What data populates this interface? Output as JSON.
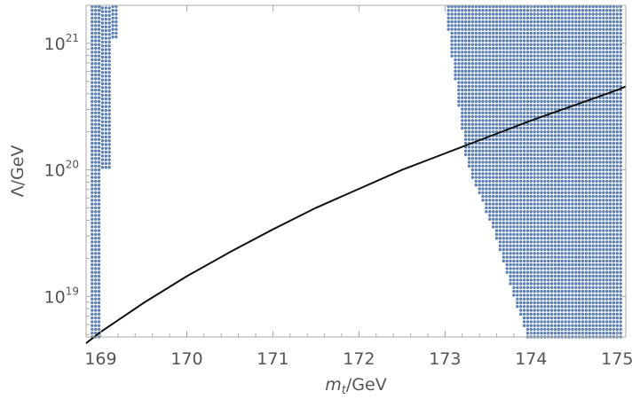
{
  "chart_data": {
    "type": "scatter",
    "xlabel": {
      "symbol": "m",
      "subscript": "t",
      "unit": "/GeV"
    },
    "ylabel": "Λ/GeV",
    "xlim": [
      168.83,
      175.1
    ],
    "ylim_log10": [
      18.68,
      21.3
    ],
    "y_scale": "log",
    "grid": false,
    "x_ticks": [
      169,
      170,
      171,
      172,
      173,
      174,
      175
    ],
    "y_ticks": [
      {
        "base": "10",
        "exp": "19",
        "log10": 19
      },
      {
        "base": "10",
        "exp": "20",
        "log10": 20
      },
      {
        "base": "10",
        "exp": "21",
        "log10": 21
      }
    ],
    "colors": {
      "points": "#5b7fb2",
      "curve": "#111111",
      "frame": "#aaaaaa",
      "text": "#555555"
    },
    "series": [
      {
        "kind": "scatter-region",
        "description_points": "dense dotted regions (grid of points)",
        "regions": [
          {
            "xs": [
              168.9,
              168.94,
              168.98
            ],
            "ymin_log10": 18.68,
            "ymax_log10": 21.3
          },
          {
            "xs": [
              169.02,
              169.06,
              169.1
            ],
            "ymin_log10": 20.02,
            "ymax_log10": 21.3
          },
          {
            "xs": [
              169.14,
              169.18
            ],
            "ymin_log10": 21.05,
            "ymax_log10": 21.3
          },
          {
            "band": true,
            "x_from": 173.0,
            "x_to": 175.06,
            "dx": 0.04,
            "left_edge": [
              [
                173.0,
                21.3
              ],
              [
                173.25,
                20.05
              ],
              [
                173.55,
                19.55
              ],
              [
                173.95,
                18.68
              ]
            ]
          }
        ]
      },
      {
        "kind": "line",
        "x": [
          168.83,
          169.0,
          169.5,
          170.0,
          170.5,
          171.0,
          171.5,
          172.0,
          172.5,
          173.0,
          173.5,
          174.0,
          174.5,
          175.0,
          175.1
        ],
        "log10y": [
          18.63,
          18.72,
          18.95,
          19.16,
          19.35,
          19.53,
          19.7,
          19.85,
          20.0,
          20.13,
          20.26,
          20.39,
          20.51,
          20.63,
          20.66
        ]
      }
    ]
  }
}
